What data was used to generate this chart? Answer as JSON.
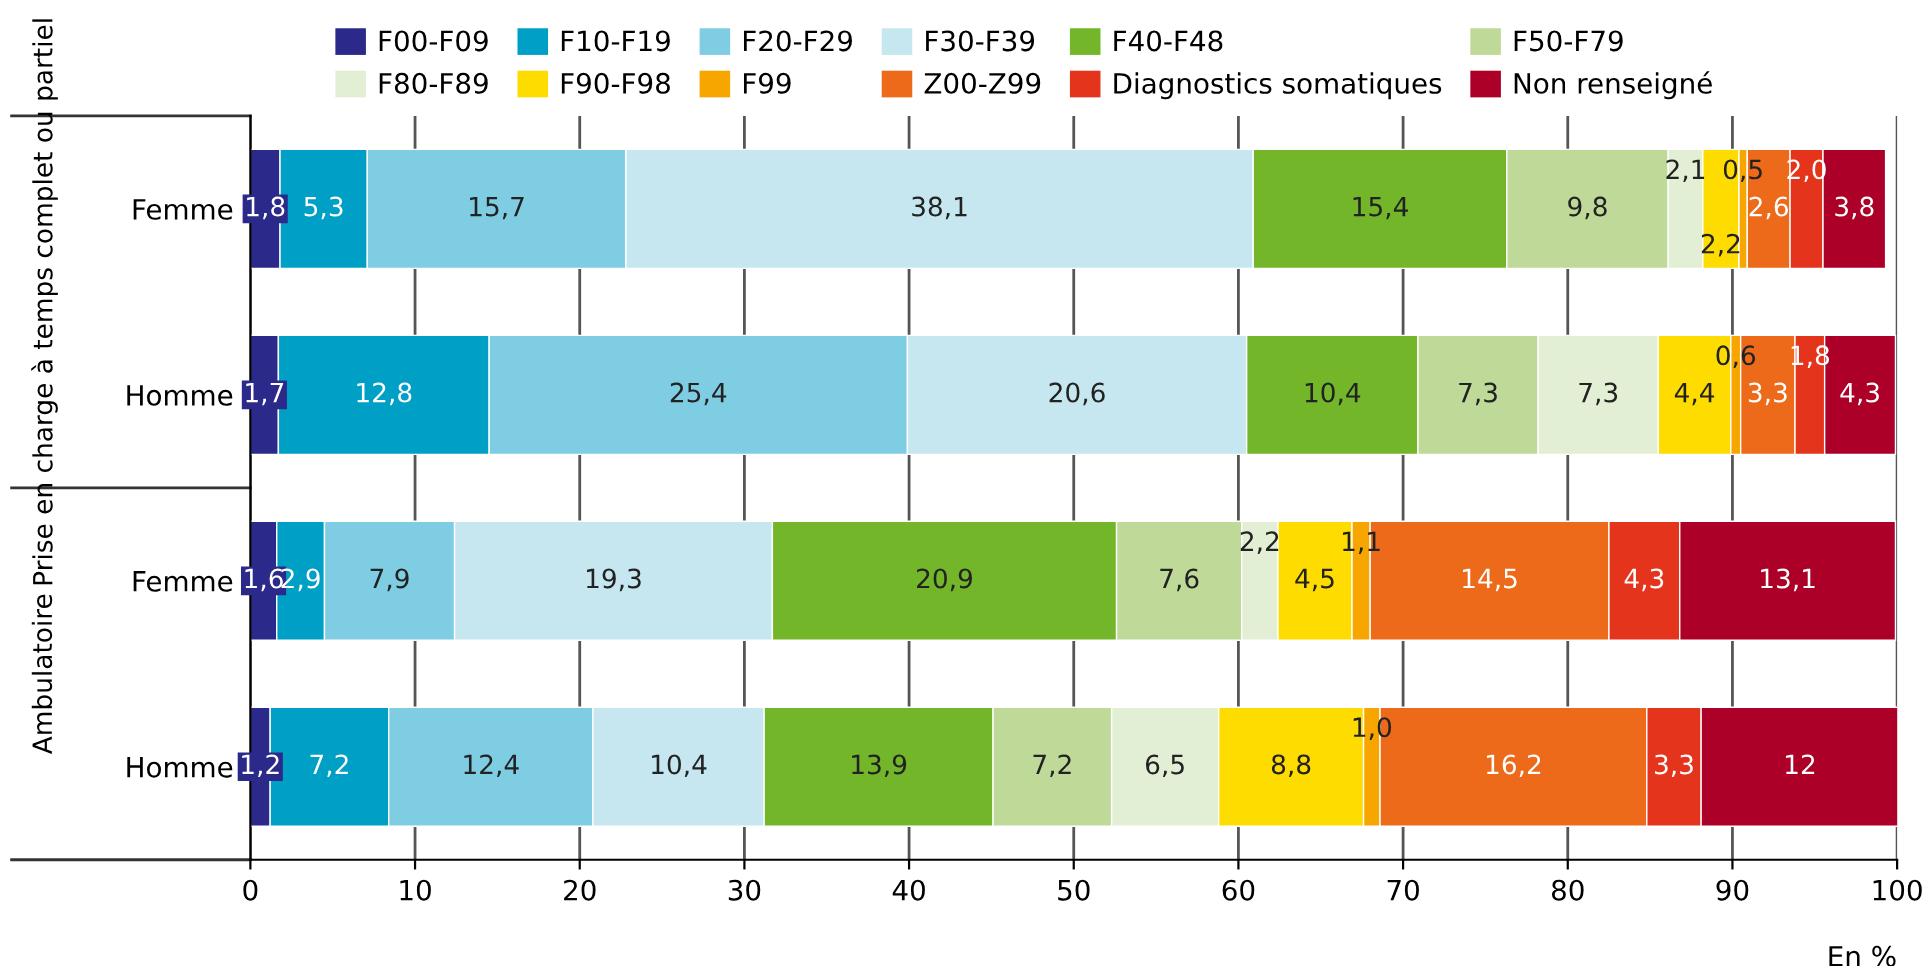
{
  "chart_data": {
    "type": "bar",
    "orientation": "horizontal",
    "stacked": true,
    "xlabel": "En %",
    "categories": [
      "Femme",
      "Homme",
      "Femme",
      "Homme"
    ],
    "xlim": [
      0,
      100
    ],
    "xticks": [
      0,
      10,
      20,
      30,
      40,
      50,
      60,
      70,
      80,
      90,
      100
    ],
    "grid": "x",
    "legend": "top",
    "annotations": [
      "Prise en charge à temps complet ou partiel",
      "Ambulatoire"
    ],
    "series": [
      {
        "name": "F00-F09",
        "color": "#2b2a8a",
        "values": [
          1.8,
          1.7,
          1.6,
          1.2
        ],
        "value_labels": [
          "1,8",
          "1,7",
          "1,6",
          "1,2"
        ]
      },
      {
        "name": "F10-F19",
        "color": "#00a0c6",
        "values": [
          5.3,
          12.8,
          2.9,
          7.2
        ],
        "value_labels": [
          "5,3",
          "12,8",
          "2,9",
          "7,2"
        ]
      },
      {
        "name": "F20-F29",
        "color": "#7fcde3",
        "values": [
          15.7,
          25.4,
          7.9,
          12.4
        ],
        "value_labels": [
          "15,7",
          "25,4",
          "7,9",
          "12,4"
        ]
      },
      {
        "name": "F30-F39",
        "color": "#c6e7f0",
        "values": [
          38.1,
          20.6,
          19.3,
          10.4
        ],
        "value_labels": [
          "38,1",
          "20,6",
          "19,3",
          "10,4"
        ]
      },
      {
        "name": "F40-F48",
        "color": "#73b62a",
        "values": [
          15.4,
          10.4,
          20.9,
          13.9
        ],
        "value_labels": [
          "15,4",
          "10,4",
          "20,9",
          "13,9"
        ]
      },
      {
        "name": "F50-F79",
        "color": "#bfda98",
        "values": [
          9.8,
          7.3,
          7.6,
          7.2
        ],
        "value_labels": [
          "9,8",
          "7,3",
          "7,6",
          "7,2"
        ]
      },
      {
        "name": "F80-F89",
        "color": "#e3efd5",
        "values": [
          2.1,
          7.3,
          2.2,
          6.5
        ],
        "value_labels": [
          "2,1",
          "7,3",
          "2,2",
          "6,5"
        ]
      },
      {
        "name": "F90-F98",
        "color": "#ffdc00",
        "values": [
          2.2,
          4.4,
          4.5,
          8.8
        ],
        "value_labels": [
          "2,2",
          "4,4",
          "4,5",
          "8,8"
        ]
      },
      {
        "name": "F99",
        "color": "#f7a600",
        "values": [
          0.5,
          0.6,
          1.1,
          1.0
        ],
        "value_labels": [
          "0,5",
          "0,6",
          "1,1",
          "1,0"
        ]
      },
      {
        "name": "Z00-Z99",
        "color": "#ec6a1a",
        "values": [
          2.6,
          3.3,
          14.5,
          16.2
        ],
        "value_labels": [
          "2,6",
          "3,3",
          "14,5",
          "16,2"
        ]
      },
      {
        "name": "Diagnostics somatiques",
        "color": "#e4341c",
        "values": [
          2.0,
          1.8,
          4.3,
          3.3
        ],
        "value_labels": [
          "2,0",
          "1,8",
          "4,3",
          "3,3"
        ]
      },
      {
        "name": "Non renseigné",
        "color": "#ad0028",
        "values": [
          3.8,
          4.3,
          13.1,
          12
        ],
        "value_labels": [
          "3,8",
          "4,3",
          "13,1",
          "12"
        ]
      }
    ]
  }
}
